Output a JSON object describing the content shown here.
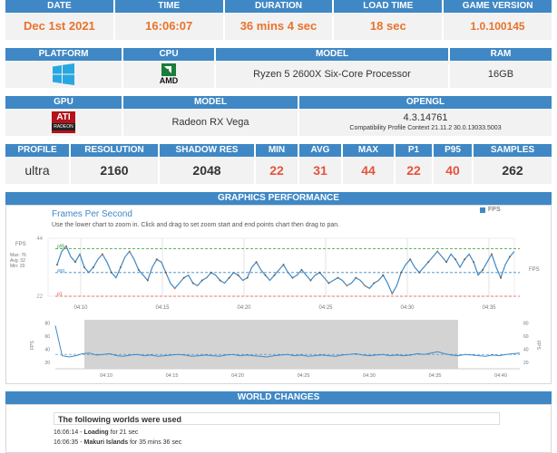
{
  "row1": [
    {
      "label": "DATE",
      "value": "Dec 1st 2021"
    },
    {
      "label": "TIME",
      "value": "16:06:07"
    },
    {
      "label": "DURATION",
      "value": "36 mins 4 sec"
    },
    {
      "label": "LOAD TIME",
      "value": "18 sec"
    },
    {
      "label": "GAME VERSION",
      "value": "1.0.100145"
    }
  ],
  "row2": {
    "platform_label": "PLATFORM",
    "platform_icon": "windows-logo-icon",
    "cpu_label": "CPU",
    "cpu_logo_text": "AMD",
    "model_label": "MODEL",
    "model_value": "Ryzen 5 2600X Six-Core Processor",
    "ram_label": "RAM",
    "ram_value": "16GB"
  },
  "row3": {
    "gpu_label": "GPU",
    "gpu_logo_text": "ATI",
    "gpu_logo_sub": "RADEON",
    "model_label": "MODEL",
    "model_value": "Radeon RX Vega",
    "opengl_label": "OPENGL",
    "opengl_version": "4.3.14761",
    "opengl_profile": "Compatibility Profile Context 21.11.2 30.0.13033.5003"
  },
  "row4": [
    {
      "label": "PROFILE",
      "value": "ultra"
    },
    {
      "label": "RESOLUTION",
      "value": "2160"
    },
    {
      "label": "SHADOW RES",
      "value": "2048"
    },
    {
      "label": "MIN",
      "value": "22"
    },
    {
      "label": "AVG",
      "value": "31"
    },
    {
      "label": "MAX",
      "value": "44"
    },
    {
      "label": "P1",
      "value": "22"
    },
    {
      "label": "P95",
      "value": "40"
    },
    {
      "label": "SAMPLES",
      "value": "262"
    }
  ],
  "graphics": {
    "section_title": "GRAPHICS PERFORMANCE",
    "chart_title": "Frames Per Second",
    "instructions": "Use the lower chart to zoom in. Click and drag to set zoom start and end points chart then drag to pan.",
    "legend": "FPS",
    "ylabel": "FPS",
    "right_label": "FPS",
    "stats": [
      "Max: 76",
      "Avg: 32",
      "Min: 20"
    ]
  },
  "chart_data": [
    {
      "type": "line",
      "name": "main",
      "series": [
        {
          "name": "FPS",
          "color": "#3f88c5"
        }
      ],
      "y_ticks": [
        "44",
        "22"
      ],
      "ylim": [
        22,
        44
      ],
      "x_ticks": [
        "04:10",
        "04:15",
        "04:20",
        "04:25",
        "04:30",
        "04:35"
      ],
      "ref_lines": [
        {
          "label": "p95",
          "value": 40,
          "color": "#2ca02c"
        },
        {
          "label": "avg",
          "value": 31,
          "color": "#3f88c5"
        },
        {
          "label": "p1",
          "value": 22,
          "color": "#e5533d"
        }
      ],
      "y": [
        34,
        39,
        41,
        37,
        35,
        38,
        33,
        31,
        33,
        36,
        38,
        35,
        31,
        29,
        33,
        37,
        39,
        36,
        32,
        30,
        28,
        33,
        36,
        35,
        31,
        27,
        25,
        27,
        29,
        30,
        27,
        26,
        28,
        29,
        31,
        30,
        28,
        27,
        29,
        31,
        30,
        28,
        29,
        33,
        35,
        32,
        30,
        28,
        30,
        32,
        34,
        31,
        29,
        30,
        32,
        30,
        28,
        30,
        31,
        29,
        27,
        28,
        29,
        28,
        26,
        27,
        29,
        28,
        26,
        25,
        27,
        28,
        30,
        27,
        23,
        26,
        31,
        34,
        36,
        33,
        31,
        33,
        35,
        37,
        39,
        37,
        35,
        38,
        36,
        33,
        36,
        38,
        35,
        30,
        32,
        35,
        38,
        33,
        29,
        34,
        37,
        39
      ]
    },
    {
      "type": "line",
      "name": "overview",
      "series": [
        {
          "name": "FPS",
          "color": "#3f88c5"
        }
      ],
      "y_ticks": [
        "80",
        "60",
        "40",
        "20"
      ],
      "ylim": [
        10,
        85
      ],
      "x_ticks": [
        "04:10",
        "04:15",
        "04:20",
        "04:25",
        "04:30",
        "04:35",
        "04:40"
      ],
      "y": [
        76,
        30,
        28,
        30,
        33,
        34,
        31,
        32,
        33,
        30,
        29,
        31,
        32,
        30,
        31,
        29,
        30,
        31,
        32,
        31,
        29,
        30,
        31,
        30,
        29,
        31,
        32,
        30,
        31,
        30,
        29,
        28,
        30,
        31,
        32,
        30,
        31,
        29,
        30,
        31,
        30,
        29,
        31,
        32,
        33,
        31,
        30,
        31,
        32,
        30,
        31,
        30,
        31,
        33,
        32,
        34,
        36,
        33,
        31,
        30,
        32,
        31,
        30,
        29,
        31,
        30,
        32,
        33,
        34
      ]
    }
  ],
  "world": {
    "section_title": "WORLD CHANGES",
    "box_title": "The following worlds were used",
    "items": [
      {
        "time": "16:06:14",
        "sep": " - ",
        "name": "Loading",
        "rest": " for 21 sec"
      },
      {
        "time": "16:06:35",
        "sep": " - ",
        "name": "Makuri Islands",
        "rest": " for 35 mins 36 sec"
      }
    ]
  }
}
